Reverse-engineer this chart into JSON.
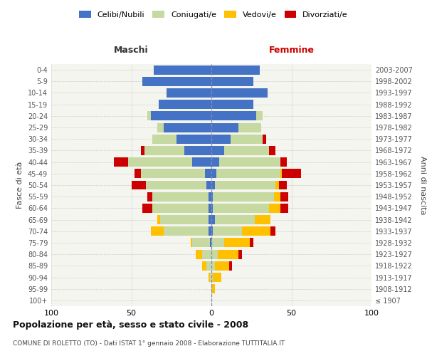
{
  "age_groups": [
    "100+",
    "95-99",
    "90-94",
    "85-89",
    "80-84",
    "75-79",
    "70-74",
    "65-69",
    "60-64",
    "55-59",
    "50-54",
    "45-49",
    "40-44",
    "35-39",
    "30-34",
    "25-29",
    "20-24",
    "15-19",
    "10-14",
    "5-9",
    "0-4"
  ],
  "birth_years": [
    "≤ 1907",
    "1908-1912",
    "1913-1917",
    "1918-1922",
    "1923-1927",
    "1928-1932",
    "1933-1937",
    "1938-1942",
    "1943-1947",
    "1948-1952",
    "1953-1957",
    "1958-1962",
    "1963-1967",
    "1968-1972",
    "1973-1977",
    "1978-1982",
    "1983-1987",
    "1988-1992",
    "1993-1997",
    "1998-2002",
    "2003-2007"
  ],
  "male_celibi": [
    0,
    0,
    0,
    0,
    0,
    1,
    2,
    2,
    2,
    2,
    3,
    4,
    12,
    17,
    22,
    30,
    38,
    33,
    28,
    43,
    36
  ],
  "male_coniugati": [
    0,
    0,
    1,
    3,
    6,
    11,
    28,
    30,
    35,
    35,
    38,
    40,
    40,
    25,
    15,
    4,
    2,
    0,
    0,
    0,
    0
  ],
  "male_vedovi": [
    0,
    0,
    1,
    3,
    4,
    1,
    8,
    2,
    0,
    0,
    0,
    0,
    0,
    0,
    0,
    0,
    0,
    0,
    0,
    0,
    0
  ],
  "male_divorziati": [
    0,
    0,
    0,
    0,
    0,
    0,
    0,
    0,
    6,
    3,
    9,
    4,
    9,
    2,
    0,
    0,
    0,
    0,
    0,
    0,
    0
  ],
  "female_nubili": [
    0,
    0,
    0,
    0,
    0,
    0,
    1,
    2,
    1,
    1,
    2,
    3,
    5,
    8,
    12,
    17,
    28,
    26,
    35,
    26,
    30
  ],
  "female_coniugate": [
    0,
    0,
    1,
    2,
    4,
    8,
    18,
    25,
    35,
    38,
    38,
    40,
    38,
    28,
    20,
    14,
    4,
    0,
    0,
    0,
    0
  ],
  "female_vedove": [
    0,
    2,
    5,
    9,
    13,
    16,
    18,
    10,
    7,
    4,
    2,
    1,
    0,
    0,
    0,
    0,
    0,
    0,
    0,
    0,
    0
  ],
  "female_divorziate": [
    0,
    0,
    0,
    2,
    2,
    2,
    3,
    0,
    5,
    5,
    5,
    12,
    4,
    4,
    2,
    0,
    0,
    0,
    0,
    0,
    0
  ],
  "color_celibi": "#4472c4",
  "color_coniugati": "#c5d9a0",
  "color_vedovi": "#ffc000",
  "color_divorziati": "#cc0000",
  "title": "Popolazione per età, sesso e stato civile - 2008",
  "subtitle": "COMUNE DI ROLETTO (TO) - Dati ISTAT 1° gennaio 2008 - Elaborazione TUTTITALIA.IT",
  "label_maschi": "Maschi",
  "label_femmine": "Femmine",
  "label_fasce": "Fasce di età",
  "label_anni": "Anni di nascita",
  "legend_labels": [
    "Celibi/Nubili",
    "Coniugati/e",
    "Vedovi/e",
    "Divorziati/e"
  ],
  "xlim": 100,
  "bg_color": "#ffffff",
  "plot_bg": "#f5f5f0",
  "grid_color": "#cccccc"
}
